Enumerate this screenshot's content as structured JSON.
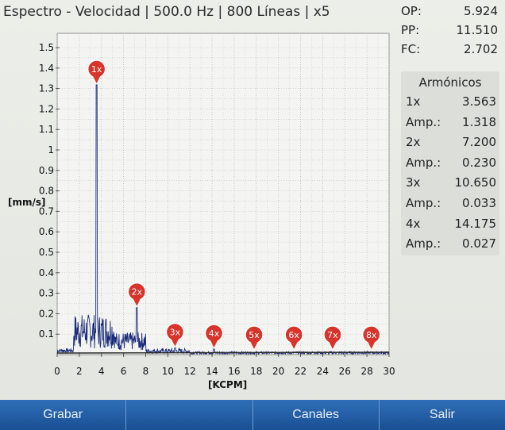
{
  "header": {
    "title": "Espectro - Velocidad | 500.0 Hz | 800 Líneas | x5"
  },
  "stats": [
    {
      "label": "OP:",
      "value": "5.924"
    },
    {
      "label": "PP:",
      "value": "11.510"
    },
    {
      "label": "FC:",
      "value": "2.702"
    }
  ],
  "harmonics": {
    "title": "Armónicos",
    "rows": [
      {
        "label": "1x",
        "value": "3.563"
      },
      {
        "label": "Amp.:",
        "value": "1.318"
      },
      {
        "label": "2x",
        "value": "7.200"
      },
      {
        "label": "Amp.:",
        "value": "0.230"
      },
      {
        "label": "3x",
        "value": "10.650"
      },
      {
        "label": "Amp.:",
        "value": "0.033"
      },
      {
        "label": "4x",
        "value": "14.175"
      },
      {
        "label": "Amp.:",
        "value": "0.027"
      }
    ]
  },
  "toolbar": {
    "buttons": [
      "Grabar",
      "",
      "Canales",
      "Salir"
    ]
  },
  "colors": {
    "accent": "#1f5aa0",
    "marker": "#d9342b",
    "trace": "#1a2a7a",
    "grid": "#b9bcb6"
  },
  "chart_data": {
    "type": "line",
    "title": "Espectro - Velocidad",
    "xlabel": "[KCPM]",
    "ylabel": "[mm/s]",
    "xlim": [
      0,
      30
    ],
    "ylim": [
      0,
      1.5
    ],
    "xticks": [
      "0",
      "2",
      "4",
      "6",
      "8",
      "10",
      "12",
      "14",
      "16",
      "18",
      "20",
      "22",
      "24",
      "26",
      "28",
      "30"
    ],
    "yticks": [
      "0.1",
      "0.2",
      "0.3",
      "0.4",
      "0.5",
      "0.6",
      "0.7",
      "0.8",
      "0.9",
      "1",
      "1.1",
      "1.2",
      "1.3",
      "1.4",
      "1.5"
    ],
    "peaks": [
      {
        "x": 3.563,
        "y": 1.318
      },
      {
        "x": 7.2,
        "y": 0.23
      },
      {
        "x": 10.65,
        "y": 0.033
      },
      {
        "x": 14.175,
        "y": 0.027
      }
    ],
    "markers": [
      {
        "label": "1x",
        "x": 3.563
      },
      {
        "label": "2x",
        "x": 7.2
      },
      {
        "label": "3x",
        "x": 10.65
      },
      {
        "label": "4x",
        "x": 14.175
      },
      {
        "label": "5x",
        "x": 17.8
      },
      {
        "label": "6x",
        "x": 21.4
      },
      {
        "label": "7x",
        "x": 24.9
      },
      {
        "label": "8x",
        "x": 28.4
      }
    ]
  }
}
